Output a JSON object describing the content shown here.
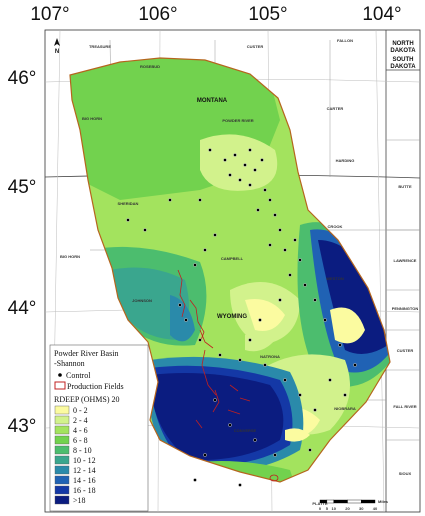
{
  "axes": {
    "longitude_labels": [
      "107°",
      "106°",
      "105°",
      "104°"
    ],
    "latitude_labels": [
      "46°",
      "45°",
      "44°",
      "43°"
    ]
  },
  "map": {
    "states": {
      "montana": "MONTANA",
      "wyoming": "WYOMING",
      "north_dakota": [
        "NORTH",
        "DAKOTA"
      ],
      "south_dakota": [
        "SOUTH",
        "DAKOTA"
      ]
    },
    "north_arrow": "N",
    "counties": [
      "TREASURE",
      "ROSEBUD",
      "CUSTER",
      "FALLON",
      "BIG HORN",
      "POWDER RIVER",
      "CARTER",
      "HARDING",
      "SHERIDAN",
      "CROOK",
      "BUTTE",
      "BIG HORN",
      "CAMPBELL",
      "LAWRENCE",
      "JOHNSON",
      "WESTON",
      "PENNINGTON",
      "WASHAKIE",
      "NATRONA",
      "CUSTER",
      "NIOBRARA",
      "FALL RIVER",
      "CONVERSE",
      "PLATTE",
      "SIOUX"
    ]
  },
  "legend": {
    "title": [
      "Powder River Basin",
      "-Shannon"
    ],
    "symbols": [
      "Control",
      "Production Fields"
    ],
    "subtitle": "RDEEP (OHMS) 20",
    "classes": [
      {
        "label": "0 - 2",
        "color": "#fbfba0"
      },
      {
        "label": "2 - 4",
        "color": "#d2f28c"
      },
      {
        "label": "4 - 6",
        "color": "#a3e35e"
      },
      {
        "label": "6 - 8",
        "color": "#72d24e"
      },
      {
        "label": "8 - 10",
        "color": "#4cbd6e"
      },
      {
        "label": "10 - 12",
        "color": "#3aa68e"
      },
      {
        "label": "12 - 14",
        "color": "#2a8aaa"
      },
      {
        "label": "14 - 16",
        "color": "#2062b4"
      },
      {
        "label": "16 - 18",
        "color": "#1438a6"
      },
      {
        "label": ">18",
        "color": "#0b1c80"
      }
    ]
  },
  "scale_bar": {
    "ticks": [
      0,
      5,
      10,
      20,
      30,
      40
    ],
    "unit": "Miles"
  }
}
